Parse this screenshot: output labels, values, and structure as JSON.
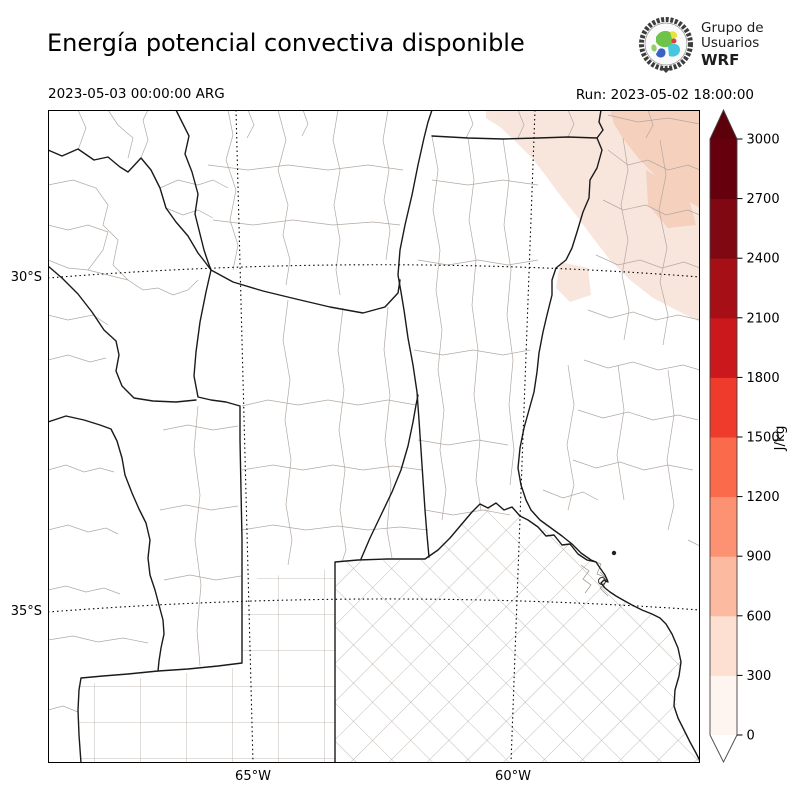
{
  "header": {
    "title": "Energía potencial convectiva disponible",
    "valid_time": "2023-05-03 00:00:00 ARG",
    "run_time": "Run: 2023-05-02 18:00:00",
    "logo": {
      "line1": "Grupo de",
      "line2": "Usuarios",
      "line3": "WRF"
    }
  },
  "axes": {
    "lat_ticks": [
      {
        "label": "30°S"
      },
      {
        "label": "35°S"
      }
    ],
    "lon_ticks": [
      {
        "label": "65°W"
      },
      {
        "label": "60°W"
      }
    ]
  },
  "colorbar": {
    "unit": "J/kg",
    "ticks": [
      0,
      300,
      600,
      900,
      1200,
      1500,
      1800,
      2100,
      2400,
      2700,
      3000
    ],
    "segment_colors": [
      "#fff5f0",
      "#fee0d2",
      "#fcbba1",
      "#fc9272",
      "#fb6a4a",
      "#ef3b2c",
      "#cb181d",
      "#a50f15",
      "#7f0812",
      "#67000d"
    ],
    "over_color": "#5c000c",
    "under_color": "#ffffff"
  },
  "map": {
    "field_name": "CAPE",
    "shaded_regions": [
      {
        "area": "northeast",
        "level": "0-300 J/kg",
        "color": "#f8e6dd"
      },
      {
        "area": "far-northeast corner",
        "level": "300-600 J/kg",
        "color": "#f4d0bd"
      }
    ]
  }
}
